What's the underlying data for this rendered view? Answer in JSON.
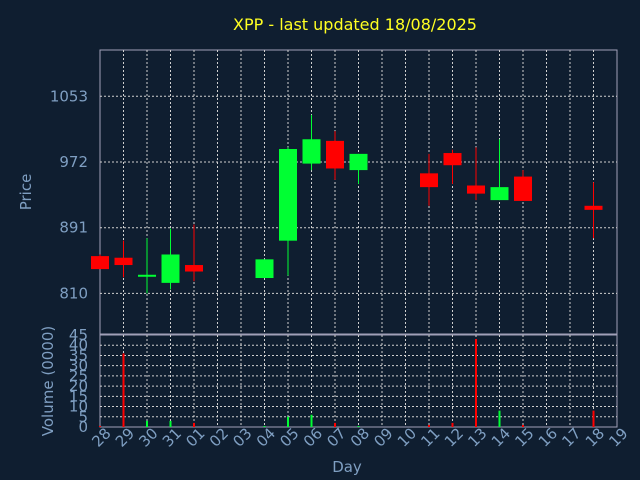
{
  "chart_data": [
    {
      "type": "candlestick",
      "title": "XPP - last updated 18/08/2025",
      "ylabel": "Price",
      "ylim": [
        760,
        1110
      ],
      "yticks": [
        810,
        891,
        972,
        1053
      ],
      "grid": true,
      "colors": {
        "up": "#00ff33",
        "down": "#ff0000"
      },
      "categories": [
        "28",
        "29",
        "30",
        "31",
        "01",
        "02",
        "03",
        "04",
        "05",
        "06",
        "07",
        "08",
        "09",
        "10",
        "11",
        "12",
        "13",
        "14",
        "15",
        "16",
        "17",
        "18",
        "19"
      ],
      "candles": [
        {
          "day": "28",
          "open": 856,
          "high": 858,
          "low": 840,
          "close": 840,
          "direction": "down"
        },
        {
          "day": "29",
          "open": 854,
          "high": 875,
          "low": 830,
          "close": 845,
          "direction": "down"
        },
        {
          "day": "30",
          "open": 831,
          "high": 878,
          "low": 810,
          "close": 833,
          "direction": "up"
        },
        {
          "day": "31",
          "open": 823,
          "high": 890,
          "low": 815,
          "close": 858,
          "direction": "up"
        },
        {
          "day": "01",
          "open": 845,
          "high": 895,
          "low": 825,
          "close": 837,
          "direction": "down"
        },
        {
          "day": "04",
          "open": 829,
          "high": 852,
          "low": 829,
          "close": 852,
          "direction": "up"
        },
        {
          "day": "05",
          "open": 875,
          "high": 990,
          "low": 832,
          "close": 988,
          "direction": "up"
        },
        {
          "day": "06",
          "open": 970,
          "high": 1030,
          "low": 962,
          "close": 1000,
          "direction": "up"
        },
        {
          "day": "07",
          "open": 998,
          "high": 1010,
          "low": 950,
          "close": 964,
          "direction": "down"
        },
        {
          "day": "08",
          "open": 962,
          "high": 982,
          "low": 945,
          "close": 982,
          "direction": "up"
        },
        {
          "day": "11",
          "open": 958,
          "high": 982,
          "low": 918,
          "close": 941,
          "direction": "down"
        },
        {
          "day": "12",
          "open": 983,
          "high": 987,
          "low": 945,
          "close": 968,
          "direction": "down"
        },
        {
          "day": "13",
          "open": 943,
          "high": 990,
          "low": 925,
          "close": 933,
          "direction": "down"
        },
        {
          "day": "14",
          "open": 925,
          "high": 1000,
          "low": 925,
          "close": 941,
          "direction": "up"
        },
        {
          "day": "15",
          "open": 954,
          "high": 962,
          "low": 924,
          "close": 924,
          "direction": "down"
        },
        {
          "day": "18",
          "open": 918,
          "high": 947,
          "low": 878,
          "close": 913,
          "direction": "down"
        }
      ]
    },
    {
      "type": "bar",
      "ylabel": "Volume (0000)",
      "xlabel": "Day",
      "ylim": [
        0,
        45
      ],
      "yticks": [
        0,
        5,
        10,
        15,
        20,
        25,
        30,
        35,
        40,
        45
      ],
      "grid": true,
      "categories": [
        "28",
        "29",
        "30",
        "31",
        "01",
        "02",
        "03",
        "04",
        "05",
        "06",
        "07",
        "08",
        "09",
        "10",
        "11",
        "12",
        "13",
        "14",
        "15",
        "16",
        "17",
        "18",
        "19"
      ],
      "bars": [
        {
          "day": "28",
          "value": 0.5,
          "direction": "down"
        },
        {
          "day": "29",
          "value": 36,
          "direction": "down"
        },
        {
          "day": "30",
          "value": 3,
          "direction": "up"
        },
        {
          "day": "31",
          "value": 3,
          "direction": "up"
        },
        {
          "day": "01",
          "value": 2,
          "direction": "down"
        },
        {
          "day": "04",
          "value": 0.5,
          "direction": "up"
        },
        {
          "day": "05",
          "value": 5,
          "direction": "up"
        },
        {
          "day": "06",
          "value": 6,
          "direction": "up"
        },
        {
          "day": "07",
          "value": 2,
          "direction": "down"
        },
        {
          "day": "08",
          "value": 0.5,
          "direction": "up"
        },
        {
          "day": "11",
          "value": 1,
          "direction": "down"
        },
        {
          "day": "12",
          "value": 2,
          "direction": "down"
        },
        {
          "day": "13",
          "value": 43,
          "direction": "down"
        },
        {
          "day": "14",
          "value": 8,
          "direction": "up"
        },
        {
          "day": "15",
          "value": 1,
          "direction": "down"
        },
        {
          "day": "18",
          "value": 8,
          "direction": "down"
        }
      ]
    }
  ]
}
